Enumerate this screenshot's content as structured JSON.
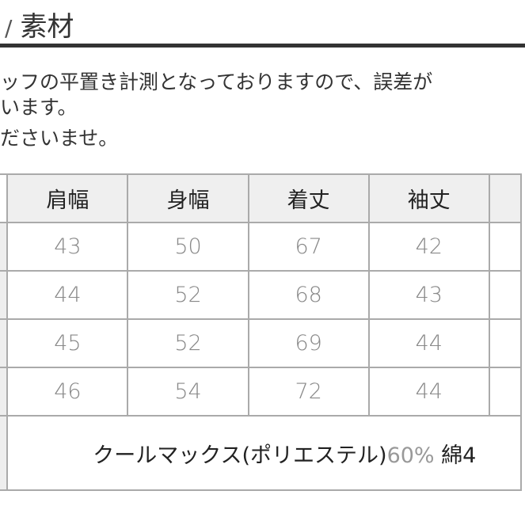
{
  "heading": {
    "slash": "/",
    "title": "素材"
  },
  "notes": [
    "ッフの平置き計測となっておりますので、誤差が",
    "います。",
    "ださいませ。"
  ],
  "table": {
    "headers": [
      "肩幅",
      "身幅",
      "着丈",
      "袖丈"
    ],
    "rows": [
      [
        "43",
        "50",
        "67",
        "42"
      ],
      [
        "44",
        "52",
        "68",
        "43"
      ],
      [
        "45",
        "52",
        "69",
        "44"
      ],
      [
        "46",
        "54",
        "72",
        "44"
      ]
    ],
    "material": {
      "name": "クールマックス(ポリエステル)",
      "pct": "60%",
      "rest": " 綿4"
    }
  }
}
